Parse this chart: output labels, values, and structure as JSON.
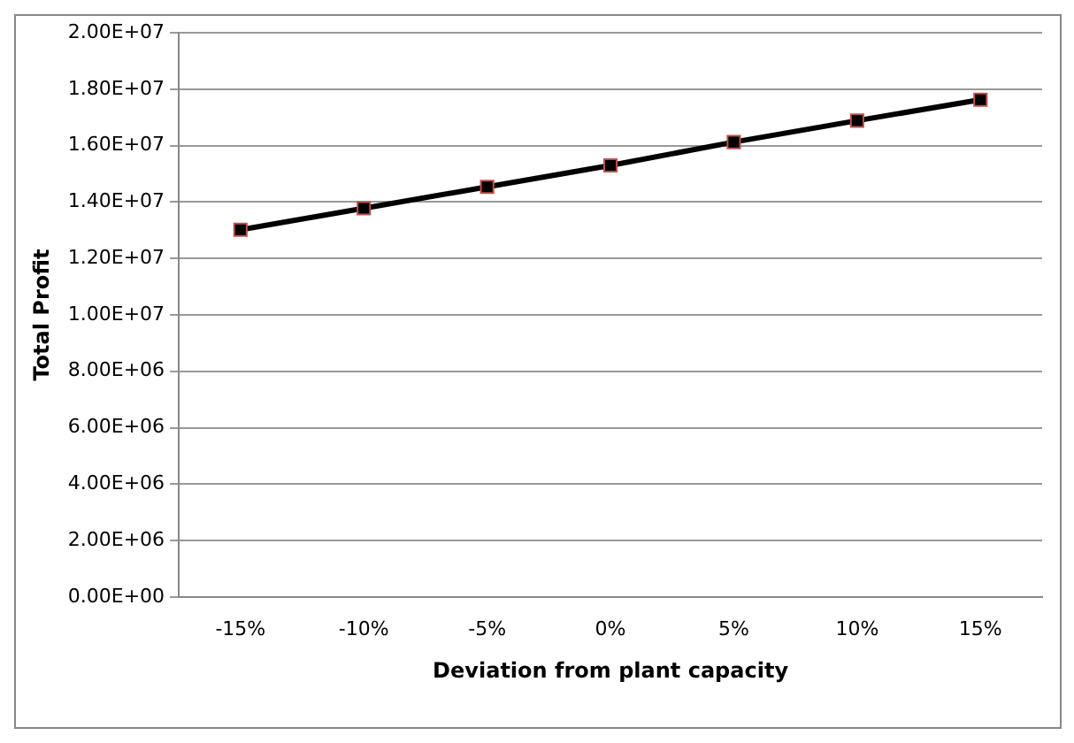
{
  "chart_data": {
    "type": "line",
    "xlabel": "Deviation from plant capacity",
    "ylabel": "Total Profit",
    "categories": [
      "-15%",
      "-10%",
      "-5%",
      "0%",
      "5%",
      "10%",
      "15%"
    ],
    "series": [
      {
        "color": "#000000",
        "values": [
          13020000,
          13780000,
          14540000,
          15300000,
          16130000,
          16890000,
          17630000
        ]
      }
    ],
    "ylim": [
      0,
      20000000
    ],
    "yticks": [
      {
        "value": 0,
        "label": "0.00E+00"
      },
      {
        "value": 2000000,
        "label": "2.00E+06"
      },
      {
        "value": 4000000,
        "label": "4.00E+06"
      },
      {
        "value": 6000000,
        "label": "6.00E+06"
      },
      {
        "value": 8000000,
        "label": "8.00E+06"
      },
      {
        "value": 10000000,
        "label": "1.00E+07"
      },
      {
        "value": 12000000,
        "label": "1.20E+07"
      },
      {
        "value": 14000000,
        "label": "1.40E+07"
      },
      {
        "value": 16000000,
        "label": "1.60E+07"
      },
      {
        "value": 18000000,
        "label": "1.80E+07"
      },
      {
        "value": 20000000,
        "label": "2.00E+07"
      }
    ],
    "grid": "y",
    "legend": false,
    "marker": "square",
    "line_style": "solid"
  }
}
